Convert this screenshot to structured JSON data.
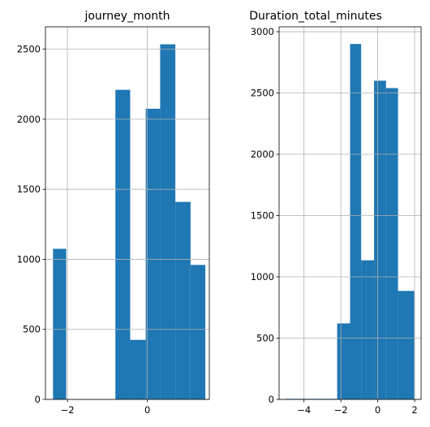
{
  "colors": {
    "bar": "#1f77b4",
    "grid": "#b0b0b0",
    "axis": "#000000",
    "background": "#ffffff"
  },
  "chart_data": [
    {
      "type": "bar",
      "subtype": "histogram",
      "title": "journey_month",
      "xlabel": "",
      "ylabel": "",
      "grid": true,
      "xlim": [
        -2.55,
        1.55
      ],
      "ylim": [
        0,
        2660
      ],
      "xticks": [
        -2,
        0
      ],
      "xtick_labels": [
        "−2",
        "0"
      ],
      "yticks": [
        0,
        500,
        1000,
        1500,
        2000,
        2500
      ],
      "ytick_labels": [
        "0",
        "500",
        "1000",
        "1500",
        "2000",
        "2500"
      ],
      "bin_edges": [
        -2.36,
        -2.03,
        -1.62,
        -1.21,
        -0.8,
        -0.43,
        -0.04,
        0.32,
        0.7,
        1.08,
        1.45
      ],
      "values": [
        1075,
        0,
        0,
        0,
        2210,
        425,
        2075,
        2535,
        1410,
        960
      ]
    },
    {
      "type": "bar",
      "subtype": "histogram",
      "title": "Duration_total_minutes",
      "xlabel": "",
      "ylabel": "",
      "grid": true,
      "xlim": [
        -5.35,
        2.35
      ],
      "ylim": [
        0,
        3040
      ],
      "xticks": [
        -4,
        -2,
        0,
        2
      ],
      "xtick_labels": [
        "−4",
        "−2",
        "0",
        "2"
      ],
      "yticks": [
        0,
        500,
        1000,
        1500,
        2000,
        2500,
        3000
      ],
      "ytick_labels": [
        "0",
        "500",
        "1000",
        "1500",
        "2000",
        "2500",
        "3000"
      ],
      "bin_edges": [
        -5.0,
        -4.3,
        -3.6,
        -2.9,
        -2.2,
        -1.5,
        -0.9,
        -0.2,
        0.45,
        1.1,
        1.98
      ],
      "values": [
        5,
        5,
        5,
        5,
        620,
        2900,
        1135,
        2600,
        2540,
        885
      ]
    }
  ]
}
